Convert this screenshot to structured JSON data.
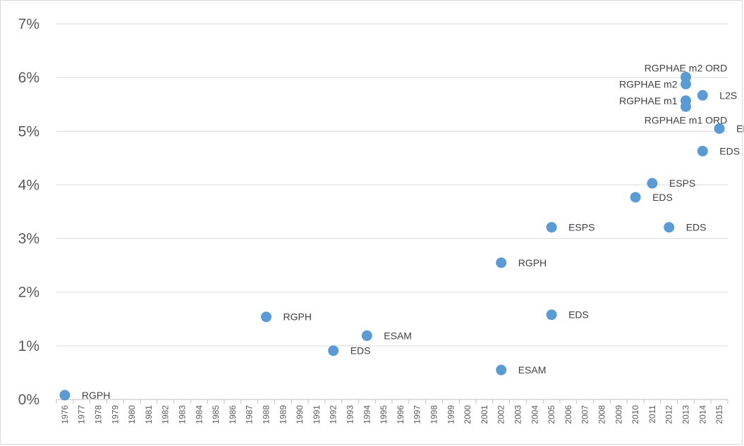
{
  "chart_data": {
    "type": "scatter",
    "title": "",
    "xlabel": "",
    "ylabel": "",
    "ylim": [
      0,
      0.07
    ],
    "y_ticks": [
      "0%",
      "1%",
      "2%",
      "3%",
      "4%",
      "5%",
      "6%",
      "7%"
    ],
    "x_categories": [
      "1976",
      "1977",
      "1978",
      "1979",
      "1980",
      "1981",
      "1982",
      "1983",
      "1984",
      "1985",
      "1986",
      "1987",
      "1988",
      "1989",
      "1990",
      "1991",
      "1992",
      "1993",
      "1994",
      "1995",
      "1996",
      "1997",
      "1998",
      "1999",
      "2000",
      "2001",
      "2002",
      "2003",
      "2004",
      "2005",
      "2006",
      "2007",
      "2008",
      "2009",
      "2010",
      "2011",
      "2012",
      "2013",
      "2014",
      "2015"
    ],
    "grid": true,
    "marker_color": "#5b9bd5",
    "points": [
      {
        "x": 1976,
        "y": 0.0008,
        "label": "RGPH",
        "label_pos": "right"
      },
      {
        "x": 1988,
        "y": 0.0154,
        "label": "RGPH",
        "label_pos": "right"
      },
      {
        "x": 1992,
        "y": 0.0091,
        "label": "EDS",
        "label_pos": "right"
      },
      {
        "x": 1994,
        "y": 0.0119,
        "label": "ESAM",
        "label_pos": "right"
      },
      {
        "x": 2002,
        "y": 0.0255,
        "label": "RGPH",
        "label_pos": "right"
      },
      {
        "x": 2002,
        "y": 0.0055,
        "label": "ESAM",
        "label_pos": "right"
      },
      {
        "x": 2005,
        "y": 0.0321,
        "label": "ESPS",
        "label_pos": "right"
      },
      {
        "x": 2005,
        "y": 0.0158,
        "label": "EDS",
        "label_pos": "right"
      },
      {
        "x": 2010,
        "y": 0.0377,
        "label": "EDS",
        "label_pos": "right"
      },
      {
        "x": 2011,
        "y": 0.0403,
        "label": "ESPS",
        "label_pos": "right"
      },
      {
        "x": 2012,
        "y": 0.0321,
        "label": "EDS",
        "label_pos": "right"
      },
      {
        "x": 2013,
        "y": 0.0601,
        "label": "RGPHAE m2 ORD",
        "label_pos": "above"
      },
      {
        "x": 2013,
        "y": 0.0588,
        "label": "RGPHAE m2",
        "label_pos": "left"
      },
      {
        "x": 2013,
        "y": 0.0557,
        "label": "RGPHAE m1",
        "label_pos": "left"
      },
      {
        "x": 2013,
        "y": 0.0546,
        "label": "RGPHAE m1 ORD",
        "label_pos": "below"
      },
      {
        "x": 2014,
        "y": 0.0567,
        "label": "L2S",
        "label_pos": "right"
      },
      {
        "x": 2014,
        "y": 0.0463,
        "label": "EDS",
        "label_pos": "right"
      },
      {
        "x": 2015,
        "y": 0.0505,
        "label": "EDS",
        "label_pos": "right"
      }
    ]
  }
}
